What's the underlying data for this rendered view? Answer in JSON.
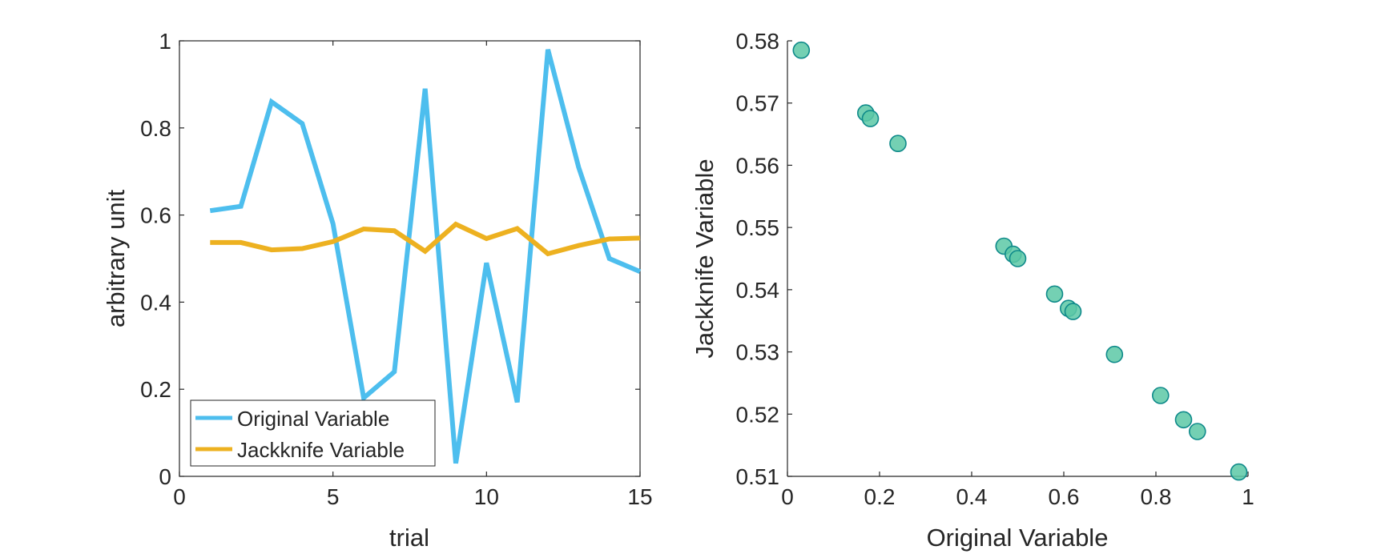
{
  "chart_data": [
    {
      "type": "line",
      "title": "",
      "xlabel": "trial",
      "ylabel": "arbitrary unit",
      "xlim": [
        0,
        15
      ],
      "ylim": [
        0,
        1
      ],
      "xticks": [
        0,
        5,
        10,
        15
      ],
      "yticks": [
        0,
        0.2,
        0.4,
        0.6,
        0.8,
        1
      ],
      "xtick_labels": [
        "0",
        "5",
        "10",
        "15"
      ],
      "ytick_labels": [
        "0",
        "0.2",
        "0.4",
        "0.6",
        "0.8",
        "1"
      ],
      "x": [
        1,
        2,
        3,
        4,
        5,
        6,
        7,
        8,
        9,
        10,
        11,
        12,
        13,
        14,
        15
      ],
      "series": [
        {
          "name": "Original Variable",
          "color": "#4DBEEE",
          "values": [
            0.61,
            0.62,
            0.86,
            0.81,
            0.58,
            0.18,
            0.24,
            0.89,
            0.03,
            0.49,
            0.17,
            0.98,
            0.71,
            0.5,
            0.47
          ]
        },
        {
          "name": "Jackknife Variable",
          "color": "#EDB120",
          "values": [
            0.537,
            0.537,
            0.52,
            0.523,
            0.539,
            0.568,
            0.564,
            0.517,
            0.579,
            0.546,
            0.569,
            0.511,
            0.53,
            0.545,
            0.547
          ]
        }
      ],
      "legend": {
        "location": "bottom-left",
        "entries": [
          "Original Variable",
          "Jackknife Variable"
        ]
      },
      "grid": false
    },
    {
      "type": "scatter",
      "title": "",
      "xlabel": "Original Variable",
      "ylabel": "Jackknife Variable",
      "xlim": [
        0,
        1
      ],
      "ylim": [
        0.51,
        0.58
      ],
      "xticks": [
        0,
        0.2,
        0.4,
        0.6,
        0.8,
        1
      ],
      "yticks": [
        0.51,
        0.52,
        0.53,
        0.54,
        0.55,
        0.56,
        0.57,
        0.58
      ],
      "xtick_labels": [
        "0",
        "0.2",
        "0.4",
        "0.6",
        "0.8",
        "1"
      ],
      "ytick_labels": [
        "0.51",
        "0.52",
        "0.53",
        "0.54",
        "0.55",
        "0.56",
        "0.57",
        "0.58"
      ],
      "marker_fill": "#5CC8A6",
      "marker_edge": "#0E8A8A",
      "points": [
        {
          "x": 0.03,
          "y": 0.5785
        },
        {
          "x": 0.17,
          "y": 0.5684
        },
        {
          "x": 0.18,
          "y": 0.5675
        },
        {
          "x": 0.24,
          "y": 0.5635
        },
        {
          "x": 0.47,
          "y": 0.547
        },
        {
          "x": 0.49,
          "y": 0.5457
        },
        {
          "x": 0.5,
          "y": 0.545
        },
        {
          "x": 0.58,
          "y": 0.5393
        },
        {
          "x": 0.61,
          "y": 0.537
        },
        {
          "x": 0.62,
          "y": 0.5365
        },
        {
          "x": 0.71,
          "y": 0.5296
        },
        {
          "x": 0.81,
          "y": 0.523
        },
        {
          "x": 0.86,
          "y": 0.5191
        },
        {
          "x": 0.89,
          "y": 0.5172
        },
        {
          "x": 0.98,
          "y": 0.5107
        }
      ],
      "grid": false
    }
  ]
}
